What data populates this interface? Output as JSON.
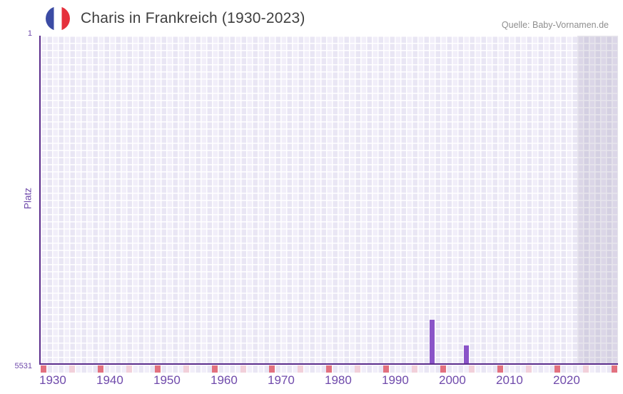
{
  "header": {
    "title": "Charis in Frankreich (1930-2023)",
    "source": "Quelle: Baby-Vornamen.de"
  },
  "chart_data": {
    "type": "bar",
    "title": "Charis in Frankreich (1930-2023)",
    "xlabel": "",
    "ylabel": "Platz",
    "y_axis": {
      "top_tick_label": "1",
      "bottom_tick_label": "5531",
      "min": 1,
      "max": 5531,
      "inverted": true
    },
    "x_axis": {
      "tick_years": [
        1930,
        1940,
        1950,
        1960,
        1970,
        1980,
        1990,
        2000,
        2010,
        2020
      ],
      "start_year": 1930,
      "visible_end_year": 2031,
      "data_end_year": 2023
    },
    "points": [
      {
        "year": 1998,
        "rank": 4780
      },
      {
        "year": 2004,
        "rank": 5215
      }
    ],
    "strip_ticks": {
      "start_year": 1930,
      "end_year": 2030,
      "step": 5,
      "decade_color": "#e2717f",
      "half_decade_color": "#f2d0da"
    },
    "legend": null,
    "grid": true,
    "colors": {
      "bar": "#8a54c8",
      "axis_line": "#5b2d8c",
      "tick_label": "#6f4aab",
      "grid_cell_a": "#f1eef9",
      "grid_cell_b": "#e9e6f4",
      "no_data_overlay": "rgba(104,96,134,0.16)",
      "title_text": "#3f3f3f",
      "source_text": "#8f8f8f"
    },
    "flag_colors": {
      "blue": "#3b4ba4",
      "white": "#ffffff",
      "red": "#e5303c"
    }
  }
}
